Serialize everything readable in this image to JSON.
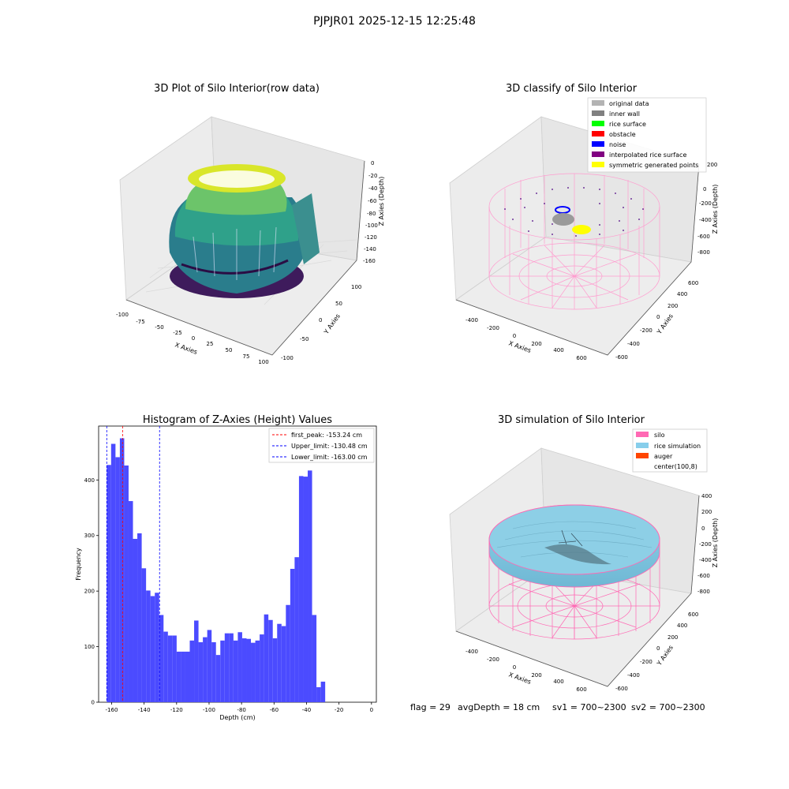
{
  "suptitle": "PJPJR01 2025-12-15 12:25:48",
  "panels": {
    "raw": {
      "title": "3D Plot of Silo Interior(row data)",
      "xlabel": "X Axies",
      "ylabel": "Y Axies",
      "zlabel": "Z Axies (Depth)",
      "xticks": [
        "-100",
        "-75",
        "-50",
        "-25",
        "0",
        "25",
        "50",
        "75",
        "100"
      ],
      "yticks": [
        "-100",
        "-50",
        "0",
        "50",
        "100"
      ],
      "zticks": [
        "0",
        "-20",
        "-40",
        "-60",
        "-80",
        "-100",
        "-120",
        "-140",
        "-160"
      ]
    },
    "classify": {
      "title": "3D classify of Silo Interior",
      "xlabel": "X Axies",
      "ylabel": "Y Axies",
      "zlabel": "Z Axies (Depth)",
      "xticks": [
        "-400",
        "-200",
        "0",
        "200",
        "400",
        "600"
      ],
      "yticks": [
        "-600",
        "-400",
        "-200",
        "0",
        "200",
        "400",
        "600"
      ],
      "zticks": [
        "200",
        "0",
        "-200",
        "-400",
        "-600",
        "-800"
      ],
      "legend": [
        {
          "label": "original data",
          "color": "#b3b3b3"
        },
        {
          "label": "inner wall",
          "color": "#808080"
        },
        {
          "label": "rice surface",
          "color": "#00ff00"
        },
        {
          "label": "obstacle",
          "color": "#ff0000"
        },
        {
          "label": "noise",
          "color": "#0000ff"
        },
        {
          "label": "interpolated rice surface",
          "color": "#800080"
        },
        {
          "label": "symmetric generated points",
          "color": "#ffff00"
        }
      ]
    },
    "simulation": {
      "title": "3D simulation of Silo Interior",
      "xlabel": "X Axies",
      "ylabel": "Y Axies",
      "zlabel": "Z Axies (Depth)",
      "xticks": [
        "-400",
        "-200",
        "0",
        "200",
        "400",
        "600"
      ],
      "yticks": [
        "-600",
        "-400",
        "-200",
        "0",
        "200",
        "400",
        "600"
      ],
      "zticks": [
        "400",
        "200",
        "0",
        "-200",
        "-400",
        "-600",
        "-800"
      ],
      "legend": [
        {
          "label": "silo",
          "color": "#ff69b4"
        },
        {
          "label": "rice simulation",
          "color": "#87ceeb"
        },
        {
          "label": "auger",
          "color": "#ff4500"
        },
        {
          "label": "center(100,8)",
          "color": ""
        }
      ]
    }
  },
  "status": {
    "flag": "flag = 29",
    "avg_depth": "avgDepth = 18 cm",
    "sv1": "sv1 = 700~2300",
    "sv2": "sv2 = 700~2300"
  },
  "colors": {
    "bar": "#4b4bff",
    "first_peak": "#ff0000",
    "limits": "#0000ff",
    "silo": "#ff69b4",
    "rice": "#87ceeb"
  },
  "chart_data": {
    "type": "bar",
    "title": "Histogram of Z-Axies (Height) Values",
    "xlabel": "Depth (cm)",
    "ylabel": "Frequency",
    "xlim": [
      -168,
      3
    ],
    "ylim": [
      0,
      497
    ],
    "xticks": [
      -160,
      -140,
      -120,
      -100,
      -80,
      -60,
      -40,
      -20,
      0
    ],
    "yticks": [
      0,
      100,
      200,
      300,
      400
    ],
    "bin_width": 2.69,
    "bins_start": -163.0,
    "values": [
      427,
      465,
      441,
      475,
      426,
      362,
      294,
      304,
      241,
      201,
      191,
      197,
      157,
      127,
      120,
      120,
      91,
      91,
      91,
      111,
      147,
      108,
      117,
      130,
      108,
      85,
      111,
      124,
      124,
      111,
      126,
      115,
      114,
      107,
      111,
      122,
      158,
      148,
      115,
      141,
      137,
      175,
      240,
      261,
      407,
      406,
      417,
      157,
      27,
      37
    ],
    "vlines": [
      {
        "label": "first_peak: -153.24 cm",
        "x": -153.24,
        "color": "#ff0000"
      },
      {
        "label": "Upper_limit: -130.48 cm",
        "x": -130.48,
        "color": "#0000ff"
      },
      {
        "label": "Lower_limit: -163.00 cm",
        "x": -163.0,
        "color": "#0000ff"
      }
    ],
    "legend_position": "top-right"
  }
}
